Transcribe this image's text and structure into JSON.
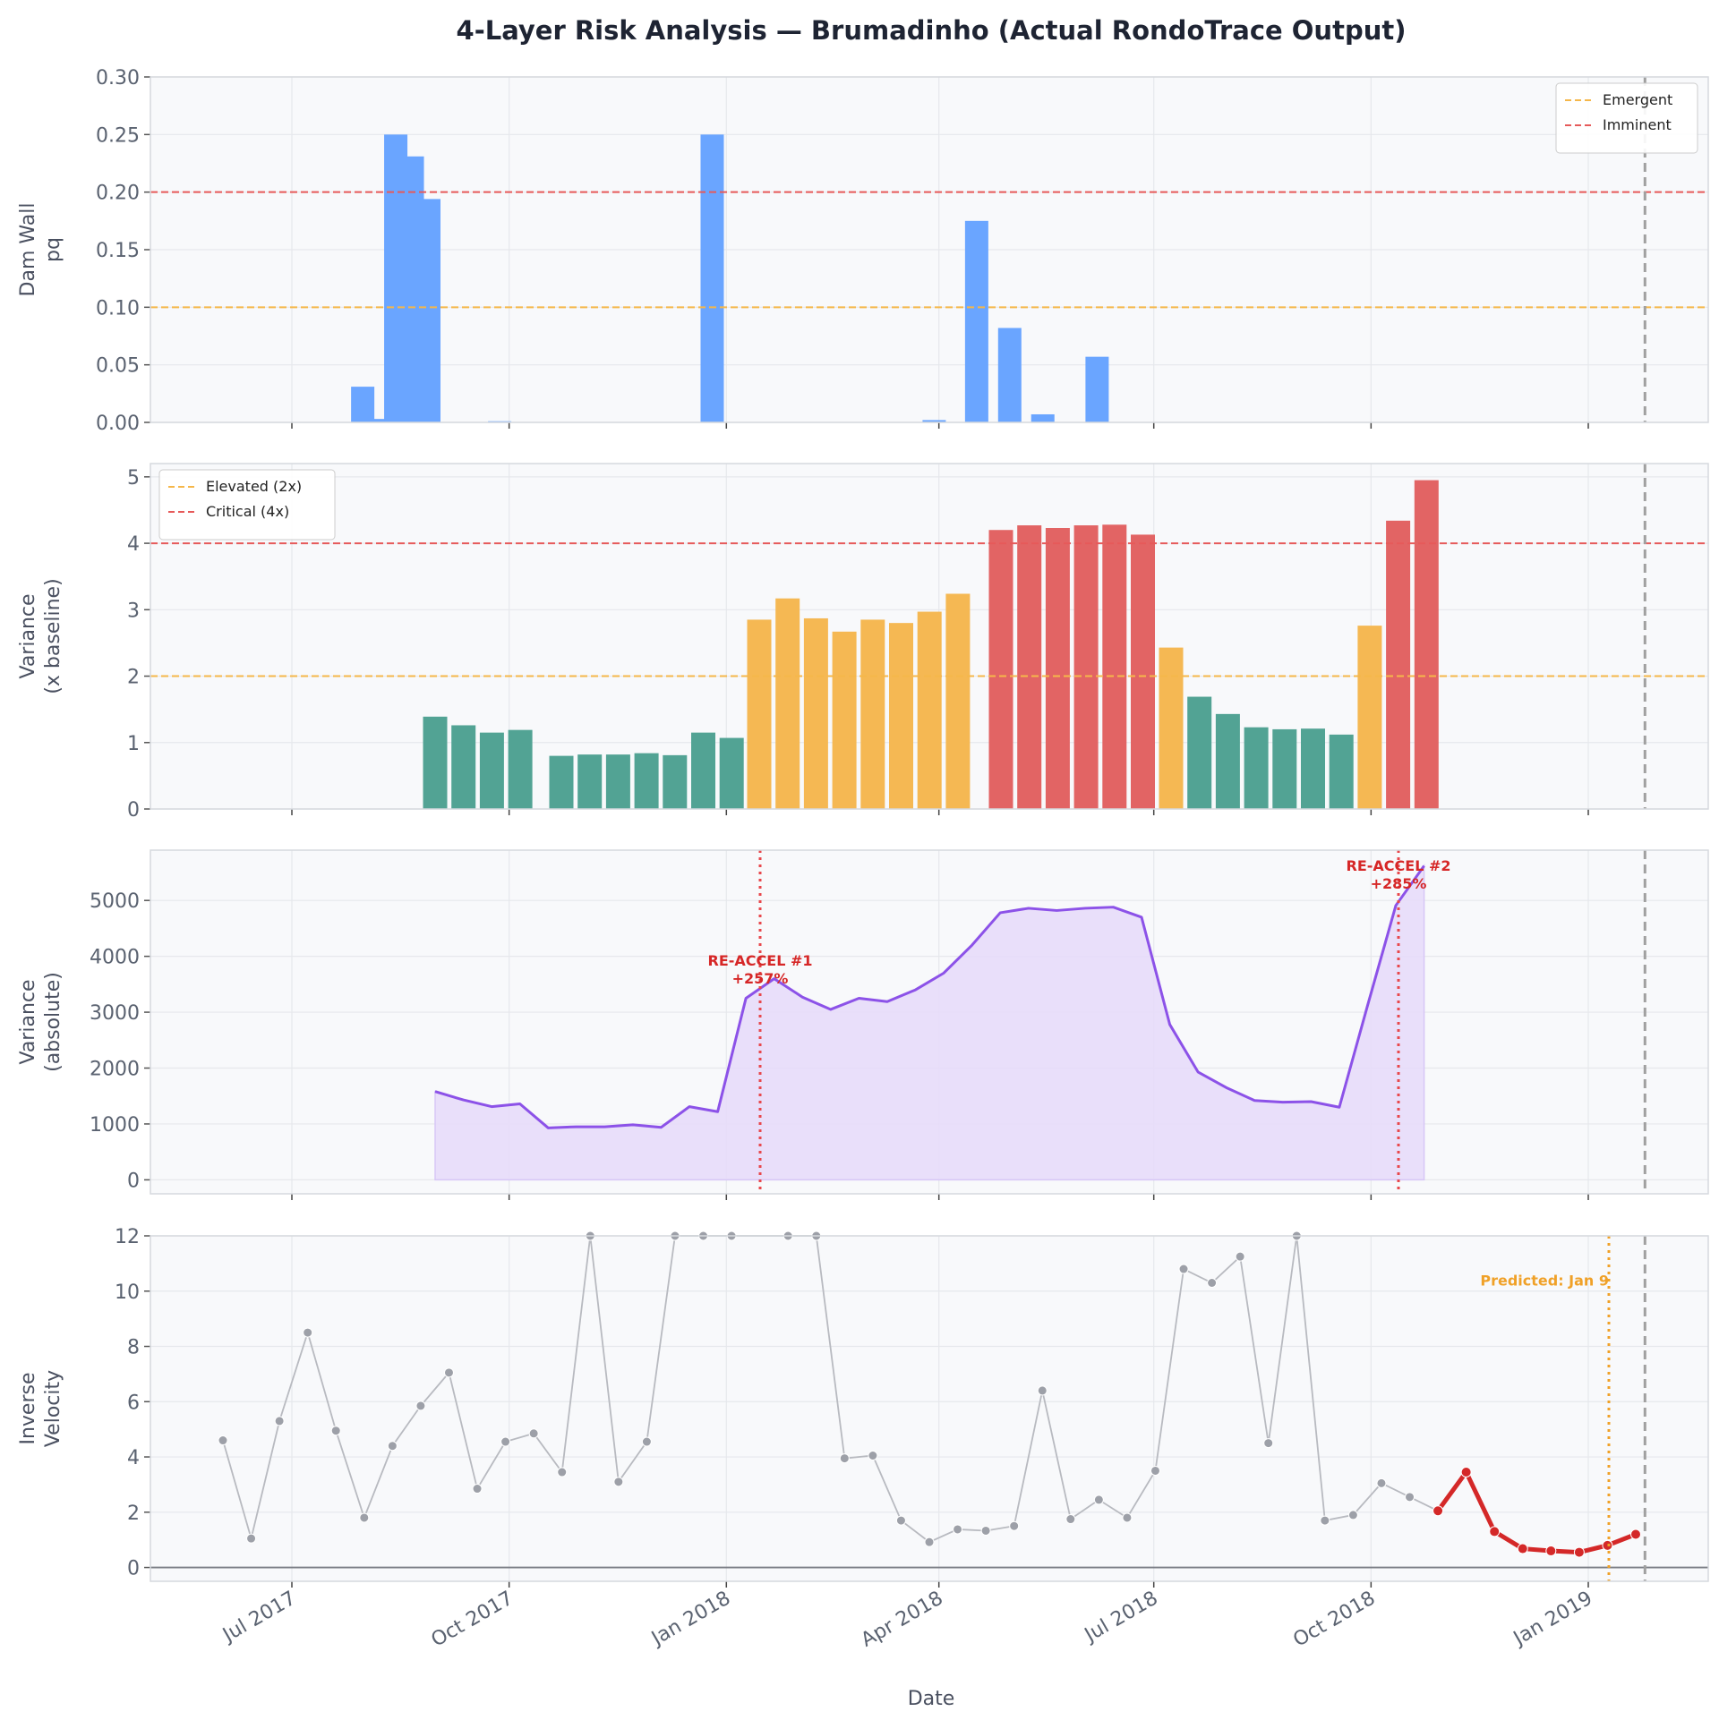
{
  "title": "4-Layer Risk Analysis — Brumadinho (Actual RondoTrace Output)",
  "colors": {
    "background": "#ffffff",
    "panel_bg": "#f8f9fb",
    "grid": "#e6e8ec",
    "spine": "#d6d9de",
    "bar_blue": "#6aa5ff",
    "green": "#52a394",
    "orange": "#f5b853",
    "red": "#e26464",
    "purple_line": "#8c52e8",
    "purple_fill": "#e7dcfa",
    "gray_line": "#b8bac0",
    "gray_point": "#9da0a8",
    "red_line": "#d42828",
    "emergent": "#f5b74a",
    "imminent": "#e65a5a",
    "reaccel": "#e8474b",
    "reaccel_text": "#d62727",
    "predicted": "#f0a128",
    "dashed_gray": "#a0a0a0"
  },
  "chart_data": [
    {
      "type": "bar",
      "ylabel": [
        "Dam Wall",
        "pq"
      ],
      "ylim": [
        0,
        0.3
      ],
      "yticks": [
        "0.00",
        "0.05",
        "0.10",
        "0.15",
        "0.20",
        "0.25",
        "0.30"
      ],
      "legend_position": "top-right",
      "thresholds": [
        {
          "name": "Emergent",
          "value": 0.1,
          "color": "#f5b74a"
        },
        {
          "name": "Imminent",
          "value": 0.2,
          "color": "#e65a5a"
        }
      ],
      "bars": [
        {
          "x": "2017-07-31",
          "value": 0.031
        },
        {
          "x": "2017-08-07",
          "value": 0.003
        },
        {
          "x": "2017-08-14",
          "value": 0.25
        },
        {
          "x": "2017-08-21",
          "value": 0.231
        },
        {
          "x": "2017-08-28",
          "value": 0.194
        },
        {
          "x": "2017-09-27",
          "value": 0.001
        },
        {
          "x": "2017-12-26",
          "value": 0.25
        },
        {
          "x": "2018-03-30",
          "value": 0.002
        },
        {
          "x": "2018-04-17",
          "value": 0.175
        },
        {
          "x": "2018-05-01",
          "value": 0.082
        },
        {
          "x": "2018-05-15",
          "value": 0.007
        },
        {
          "x": "2018-06-07",
          "value": 0.057
        }
      ]
    },
    {
      "type": "bar",
      "ylabel": [
        "Variance",
        "(x baseline)"
      ],
      "ylim": [
        0,
        5.2
      ],
      "yticks": [
        "0",
        "1",
        "2",
        "3",
        "4",
        "5"
      ],
      "legend_position": "top-left",
      "thresholds": [
        {
          "name": "Elevated (2x)",
          "value": 2,
          "color": "#f5b74a"
        },
        {
          "name": "Critical (4x)",
          "value": 4,
          "color": "#e65a5a"
        }
      ],
      "bars": [
        {
          "x": "2017-09-01",
          "value": 1.39
        },
        {
          "x": "2017-09-08",
          "value": 1.26
        },
        {
          "x": "2017-09-15",
          "value": 1.15
        },
        {
          "x": "2017-09-22",
          "value": 1.19
        },
        {
          "x": "2017-10-11",
          "value": 0.8
        },
        {
          "x": "2017-10-18",
          "value": 0.82
        },
        {
          "x": "2017-10-25",
          "value": 0.82
        },
        {
          "x": "2017-11-01",
          "value": 0.84
        },
        {
          "x": "2017-11-08",
          "value": 0.81
        },
        {
          "x": "2017-11-15",
          "value": 1.15
        },
        {
          "x": "2017-11-22",
          "value": 1.07
        },
        {
          "x": "2017-11-29",
          "value": 2.85
        },
        {
          "x": "2017-12-06",
          "value": 3.17
        },
        {
          "x": "2017-12-13",
          "value": 2.87
        },
        {
          "x": "2017-12-20",
          "value": 2.67
        },
        {
          "x": "2017-12-27",
          "value": 2.85
        },
        {
          "x": "2018-01-03",
          "value": 2.8
        },
        {
          "x": "2018-01-10",
          "value": 2.97
        },
        {
          "x": "2018-01-17",
          "value": 3.24
        },
        {
          "x": "2018-02-01",
          "value": 4.2
        },
        {
          "x": "2018-02-08",
          "value": 4.27
        },
        {
          "x": "2018-02-15",
          "value": 4.23
        },
        {
          "x": "2018-02-22",
          "value": 4.27
        },
        {
          "x": "2018-03-01",
          "value": 4.28
        },
        {
          "x": "2018-03-08",
          "value": 4.13
        },
        {
          "x": "2018-03-15",
          "value": 2.43
        },
        {
          "x": "2018-03-22",
          "value": 1.69
        },
        {
          "x": "2018-03-29",
          "value": 1.43
        },
        {
          "x": "2018-04-05",
          "value": 1.23
        },
        {
          "x": "2018-04-12",
          "value": 1.2
        },
        {
          "x": "2018-04-19",
          "value": 1.21
        },
        {
          "x": "2018-04-26",
          "value": 1.12
        },
        {
          "x": "2018-05-03",
          "value": 2.76
        },
        {
          "x": "2018-05-10",
          "value": 4.34
        },
        {
          "x": "2018-05-17",
          "value": 4.95
        }
      ]
    },
    {
      "type": "area",
      "ylabel": [
        "Variance",
        "(absolute)"
      ],
      "ylim": [
        -250,
        5900
      ],
      "yticks": [
        "0",
        "1000",
        "2000",
        "3000",
        "4000",
        "5000"
      ],
      "series": [
        {
          "x": [
            "2017-09-01",
            "2017-09-08",
            "2017-09-15",
            "2017-09-22",
            "2017-09-29",
            "2017-10-06",
            "2017-10-13",
            "2017-10-20",
            "2017-10-27",
            "2017-11-03",
            "2017-11-10",
            "2017-11-17",
            "2017-11-24",
            "2017-12-01",
            "2017-12-08",
            "2017-12-15",
            "2017-12-22",
            "2017-12-29",
            "2018-01-05",
            "2018-01-12",
            "2018-01-19",
            "2018-01-26",
            "2018-02-02",
            "2018-02-09",
            "2018-02-16",
            "2018-02-23",
            "2018-03-02",
            "2018-03-09",
            "2018-03-16",
            "2018-03-23",
            "2018-03-30",
            "2018-04-06",
            "2018-04-13",
            "2018-04-20",
            "2018-04-27",
            "2018-05-04",
            "2018-05-11",
            "2018-05-18"
          ],
          "y": [
            1580,
            1430,
            1310,
            1360,
            930,
            950,
            950,
            985,
            940,
            1310,
            1220,
            3250,
            3600,
            3270,
            3050,
            3250,
            3190,
            3400,
            3700,
            4200,
            4780,
            4860,
            4820,
            4860,
            4880,
            4700,
            2780,
            1930,
            1650,
            1420,
            1390,
            1400,
            1300,
            3120,
            4910,
            5620,
            null,
            null
          ]
        }
      ],
      "annotations": [
        {
          "label": [
            "RE-ACCEL #1",
            "+257%"
          ],
          "x": "2018-01-13"
        },
        {
          "label": [
            "RE-ACCEL #2",
            "+285%"
          ],
          "x": "2018-10-12"
        }
      ]
    },
    {
      "type": "line",
      "ylabel": [
        "Inverse",
        "Velocity"
      ],
      "ylim": [
        -0.5,
        12
      ],
      "yticks": [
        "0",
        "2",
        "4",
        "6",
        "8",
        "10",
        "12"
      ],
      "series": [
        {
          "name": "history",
          "y": [
            4.6,
            1.05,
            5.3,
            8.5,
            4.95,
            1.8,
            4.4,
            5.85,
            7.05,
            2.85,
            4.55,
            4.85,
            3.45,
            12,
            3.1,
            4.55,
            12,
            12,
            12,
            null,
            12,
            12,
            3.95,
            4.05,
            1.7,
            0.92,
            1.38,
            1.33,
            1.5,
            6.4,
            1.75,
            2.45,
            1.8,
            3.5,
            10.8,
            10.3,
            11.25,
            4.5,
            12,
            1.7,
            1.9,
            3.05,
            2.55,
            2.05
          ]
        },
        {
          "name": "recent",
          "y": [
            2.05,
            3.45,
            1.3,
            0.68,
            0.6,
            0.55,
            0.8,
            1.2
          ]
        }
      ],
      "predicted": {
        "label": "Predicted: Jan 9",
        "x": "2019-01-09"
      }
    }
  ],
  "x_axis": {
    "xlabel": "Date",
    "tick_labels": [
      "Jul 2017",
      "Oct 2017",
      "Jan 2018",
      "Apr 2018",
      "Jul 2018",
      "Oct 2018",
      "Jan 2019"
    ],
    "tick_dates": [
      "2017-07-01",
      "2017-10-01",
      "2018-01-01",
      "2018-04-01",
      "2018-07-01",
      "2018-10-01",
      "2019-01-01"
    ],
    "event_date": "2019-01-25"
  }
}
